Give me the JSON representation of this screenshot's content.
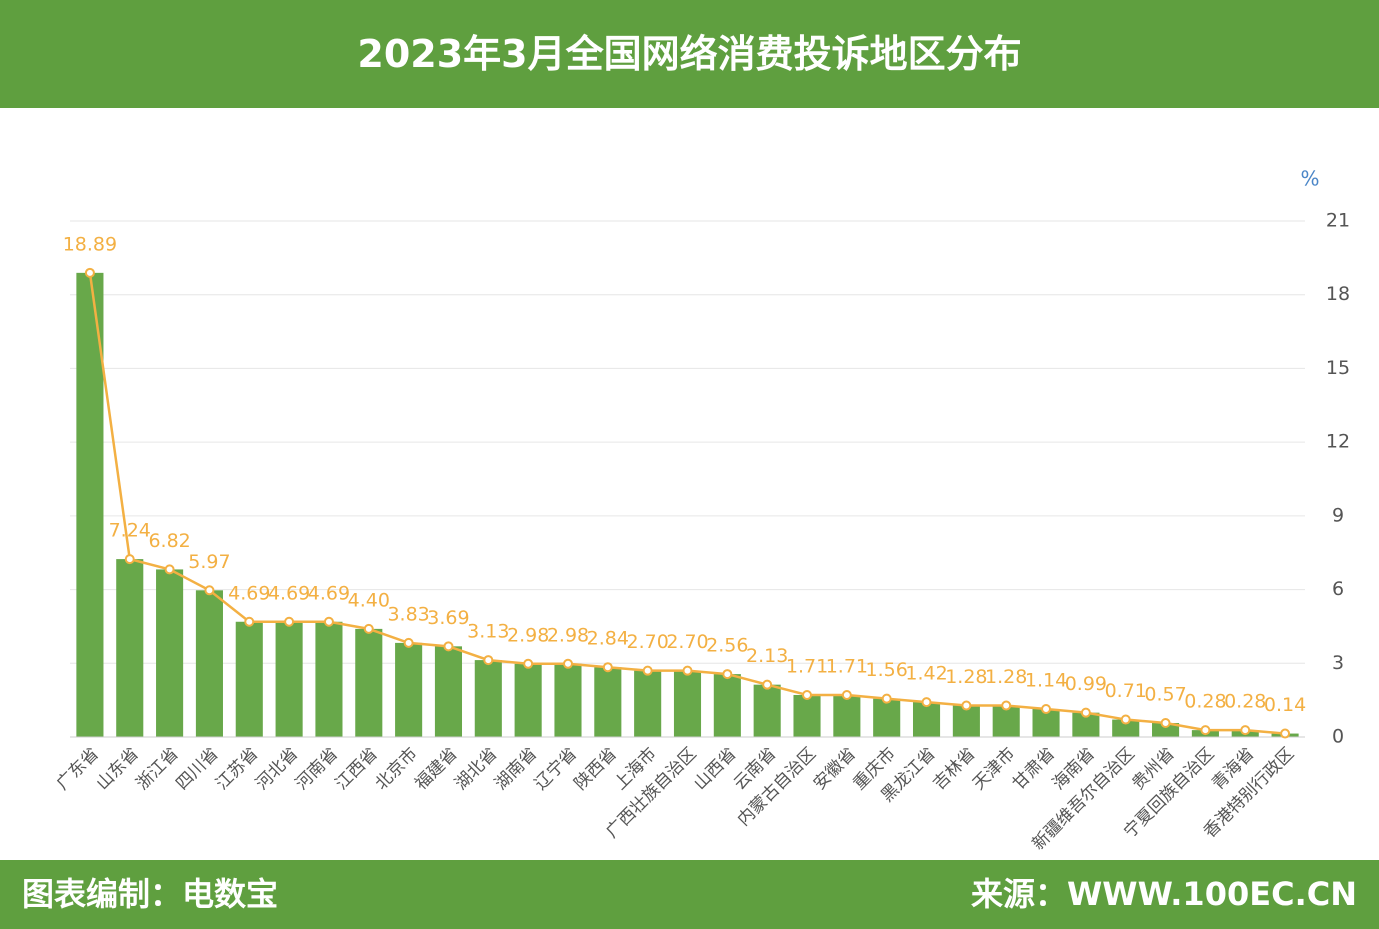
{
  "header": {
    "title": "2023年3月全国网络消费投诉地区分布"
  },
  "chart_data": {
    "type": "bar",
    "line_overlay": true,
    "y_unit": "%",
    "categories": [
      "广东省",
      "山东省",
      "浙江省",
      "四川省",
      "江苏省",
      "河北省",
      "河南省",
      "江西省",
      "北京市",
      "福建省",
      "湖北省",
      "湖南省",
      "辽宁省",
      "陕西省",
      "上海市",
      "广西壮族自治区",
      "山西省",
      "云南省",
      "内蒙古自治区",
      "安徽省",
      "重庆市",
      "黑龙江省",
      "吉林省",
      "天津市",
      "甘肃省",
      "海南省",
      "新疆维吾尔自治区",
      "贵州省",
      "宁夏回族自治区",
      "青海省",
      "香港特别行政区"
    ],
    "values": [
      18.89,
      7.24,
      6.82,
      5.97,
      4.69,
      4.69,
      4.69,
      4.4,
      3.83,
      3.69,
      3.13,
      2.98,
      2.98,
      2.84,
      2.7,
      2.7,
      2.56,
      2.13,
      1.71,
      1.71,
      1.56,
      1.42,
      1.28,
      1.28,
      1.14,
      0.99,
      0.71,
      0.57,
      0.28,
      0.28,
      0.14
    ],
    "value_labels": [
      "18.89",
      "7.24",
      "6.82",
      "5.97",
      "4.69",
      "4.69",
      "4.69",
      "4.40",
      "3.83",
      "3.69",
      "3.13",
      "2.98",
      "2.98",
      "2.84",
      "2.70",
      "2.70",
      "2.56",
      "2.13",
      "1.71",
      "1.71",
      "1.56",
      "1.42",
      "1.28",
      "1.28",
      "1.14",
      "0.99",
      "0.71",
      "0.57",
      "0.28",
      "0.28",
      "0.14"
    ],
    "color": "#68a84a",
    "line_color": "#f3b043",
    "ylim": [
      0,
      21
    ],
    "yticks": [
      0,
      3,
      6,
      9,
      12,
      15,
      18,
      21
    ],
    "y_axis_side": "right",
    "grid": true
  },
  "footer": {
    "left": "图表编制：电数宝",
    "right": "来源：WWW.100EC.CN"
  }
}
